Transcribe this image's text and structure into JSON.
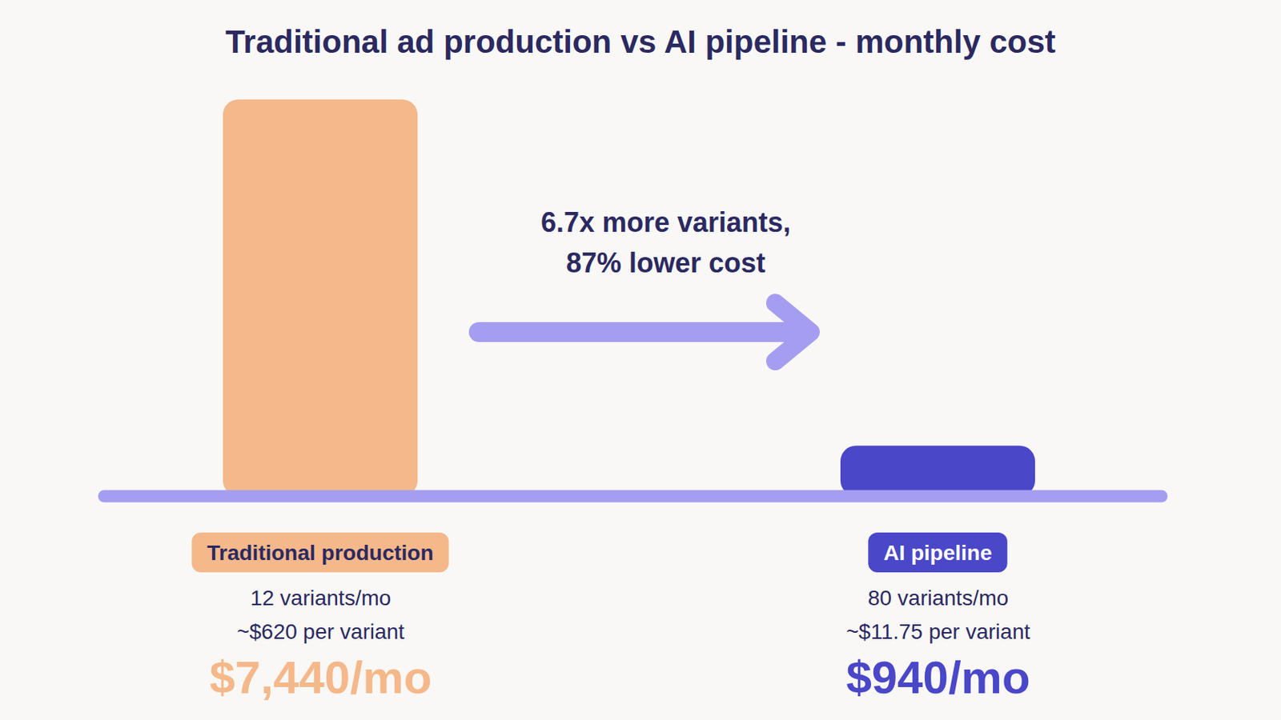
{
  "chart_data": {
    "type": "bar",
    "title": "Traditional ad production vs AI pipeline - monthly cost",
    "categories": [
      "Traditional production",
      "AI pipeline"
    ],
    "values": [
      7440,
      940
    ],
    "value_labels": [
      "$7,440/mo",
      "$940/mo"
    ],
    "details": [
      [
        "12 variants/mo",
        "~$620 per variant"
      ],
      [
        "80 variants/mo",
        "~$11.75 per variant"
      ]
    ],
    "annotation": [
      "6.7x more variants,",
      "87% lower cost"
    ],
    "colors": [
      "#f5b88a",
      "#4a47c8"
    ],
    "ylim": [
      0,
      7440
    ],
    "tick_labels": false,
    "data_labels": true,
    "grid": false
  }
}
